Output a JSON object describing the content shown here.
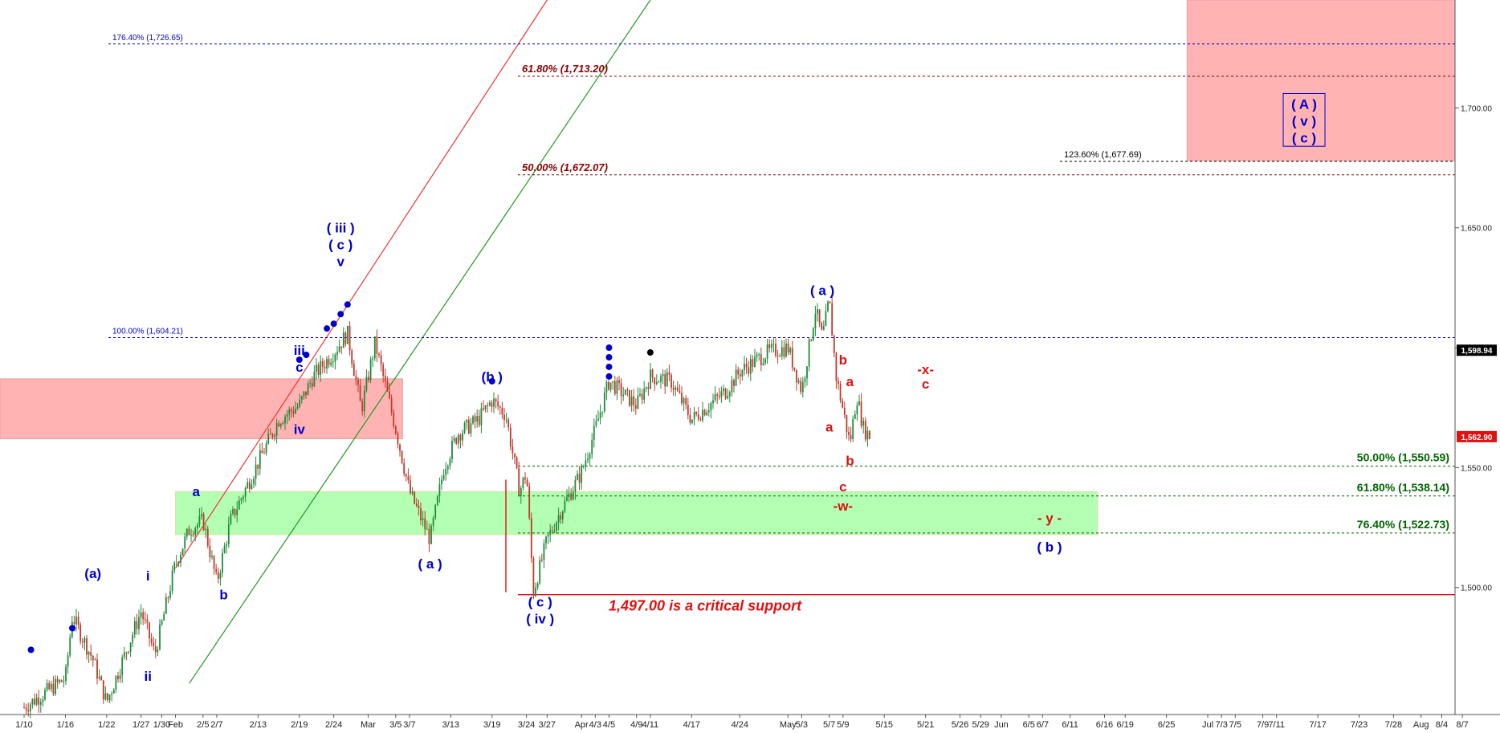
{
  "chart_data": {
    "type": "candlestick",
    "title": "",
    "xlabel": "",
    "ylabel": "",
    "ylim": [
      1447,
      1745
    ],
    "y_ticks": [
      1500,
      1550,
      1600,
      1650,
      1700
    ],
    "y_tick_labels": [
      "1,500.00",
      "1,550.00",
      "1,600.00",
      "1,650.00",
      "1,700.00"
    ],
    "x_tick_labels": [
      "1/10",
      "1/16",
      "1/22",
      "1/27",
      "1/30",
      "Feb",
      "2/5",
      "2/7",
      "2/13",
      "2/19",
      "2/24",
      "Mar",
      "3/5",
      "3/7",
      "3/13",
      "3/19",
      "3/24",
      "3/27",
      "Apr",
      "4/3",
      "4/5",
      "4/9",
      "4/11",
      "4/17",
      "4/24",
      "May",
      "5/3",
      "5/7",
      "5/9",
      "5/15",
      "5/21",
      "5/26",
      "5/29",
      "Jun",
      "6/5",
      "6/7",
      "6/11",
      "6/16",
      "6/19",
      "6/25",
      "Jul",
      "7/3",
      "7/5",
      "7/9",
      "7/11",
      "7/17",
      "7/23",
      "7/28",
      "Aug",
      "8/4",
      "8/7"
    ],
    "grid": false,
    "price_path": [
      [
        "1/10",
        1450
      ],
      [
        "1/16",
        1462
      ],
      [
        "1/17",
        1488
      ],
      [
        "1/20",
        1470
      ],
      [
        "1/22",
        1452
      ],
      [
        "1/27",
        1490
      ],
      [
        "1/29",
        1472
      ],
      [
        "2/1",
        1510
      ],
      [
        "2/3",
        1524
      ],
      [
        "2/5",
        1528
      ],
      [
        "2/7",
        1502
      ],
      [
        "2/9",
        1528
      ],
      [
        "2/13",
        1552
      ],
      [
        "2/16",
        1570
      ],
      [
        "2/19",
        1576
      ],
      [
        "2/21",
        1588
      ],
      [
        "2/24",
        1598
      ],
      [
        "2/26",
        1606
      ],
      [
        "2/28",
        1574
      ],
      [
        "3/2",
        1602
      ],
      [
        "3/5",
        1566
      ],
      [
        "3/7",
        1540
      ],
      [
        "3/10",
        1520
      ],
      [
        "3/12",
        1550
      ],
      [
        "3/14",
        1564
      ],
      [
        "3/17",
        1570
      ],
      [
        "3/19",
        1578
      ],
      [
        "3/21",
        1572
      ],
      [
        "3/23",
        1540
      ],
      [
        "3/24",
        1548
      ],
      [
        "3/25",
        1498
      ],
      [
        "3/27",
        1520
      ],
      [
        "3/29",
        1532
      ],
      [
        "4/1",
        1548
      ],
      [
        "4/3",
        1566
      ],
      [
        "4/5",
        1586
      ],
      [
        "4/9",
        1576
      ],
      [
        "4/11",
        1588
      ],
      [
        "4/14",
        1586
      ],
      [
        "4/17",
        1570
      ],
      [
        "4/22",
        1582
      ],
      [
        "4/24",
        1590
      ],
      [
        "4/28",
        1598
      ],
      [
        "5/1",
        1600
      ],
      [
        "5/3",
        1582
      ],
      [
        "5/5",
        1616
      ],
      [
        "5/6",
        1604
      ],
      [
        "5/7",
        1620
      ],
      [
        "5/8",
        1588
      ],
      [
        "5/9",
        1574
      ],
      [
        "5/10",
        1560
      ],
      [
        "5/11",
        1580
      ],
      [
        "5/12",
        1566
      ],
      [
        "5/13",
        1562.9
      ]
    ],
    "fib_levels": [
      {
        "price": 1726.65,
        "label": "176.40% (1,726.65)",
        "color": "#0000cc"
      },
      {
        "price": 1713.2,
        "label": "61.80% (1,713.20)",
        "color": "#8b0000"
      },
      {
        "price": 1677.69,
        "label": "123.60% (1,677.69)",
        "color": "#000000"
      },
      {
        "price": 1672.07,
        "label": "50.00% (1,672.07)",
        "color": "#8b0000"
      },
      {
        "price": 1604.21,
        "label": "100.00% (1,604.21)",
        "color": "#0000cc"
      },
      {
        "price": 1550.59,
        "label": "50.00% (1,550.59)",
        "color": "#006400"
      },
      {
        "price": 1538.14,
        "label": "61.80% (1,538.14)",
        "color": "#006400"
      },
      {
        "price": 1522.73,
        "label": "76.40% (1,522.73)",
        "color": "#006400"
      }
    ],
    "support_line": {
      "price": 1497.0,
      "label": "1,497.00 is a critical support",
      "color": "#dd1111"
    },
    "price_badges": [
      {
        "price": 1598.94,
        "label": "1,598.94",
        "bg": "#000000"
      },
      {
        "price": 1562.9,
        "label": "1,562.90",
        "bg": "#dd1111"
      }
    ],
    "zones": [
      {
        "name": "resistance-zone-left",
        "x0": "1/5",
        "x1": "3/6",
        "y0": 1562,
        "y1": 1587,
        "color": "#ffb3b3"
      },
      {
        "name": "support-zone-green",
        "x0": "2/1",
        "x1": "6/15",
        "y0": 1522,
        "y1": 1540,
        "color": "#b3ffb3"
      },
      {
        "name": "target-zone-upper",
        "x0": "6/28",
        "x1": "8/9",
        "y0": 1678,
        "y1": 1745,
        "color": "#ffb3b3"
      }
    ],
    "channel_lines": [
      {
        "name": "red-channel-line",
        "x0": "2/1",
        "y0": 1508,
        "x1": "3/27",
        "y1": 1745,
        "color": "#ee3333"
      },
      {
        "name": "green-channel-line",
        "x0": "2/3",
        "y0": 1460,
        "x1": "4/11",
        "y1": 1745,
        "color": "#229922"
      }
    ],
    "wave_labels": [
      {
        "text": "(a)",
        "x": "1/20",
        "y": 1504,
        "color": "#0000cc"
      },
      {
        "text": "i",
        "x": "1/28",
        "y": 1503,
        "color": "#0000cc"
      },
      {
        "text": "ii",
        "x": "1/28",
        "y": 1461,
        "color": "#0000cc"
      },
      {
        "text": "a",
        "x": "2/4",
        "y": 1538,
        "color": "#0000cc"
      },
      {
        "text": "b",
        "x": "2/8",
        "y": 1495,
        "color": "#0000cc"
      },
      {
        "text": "iv",
        "x": "2/19",
        "y": 1564,
        "color": "#0000cc"
      },
      {
        "text": "iii",
        "x": "2/19",
        "y": 1597,
        "color": "#0000cc"
      },
      {
        "text": "c",
        "x": "2/19",
        "y": 1590,
        "color": "#0000cc"
      },
      {
        "text": "( iii )",
        "x": "2/25",
        "y": 1648,
        "color": "#0000cc"
      },
      {
        "text": "( c )",
        "x": "2/25",
        "y": 1641,
        "color": "#0000cc"
      },
      {
        "text": "v",
        "x": "2/25",
        "y": 1634,
        "color": "#0000cc"
      },
      {
        "text": "( a )",
        "x": "3/10",
        "y": 1508,
        "color": "#0000cc"
      },
      {
        "text": "(b )",
        "x": "3/19",
        "y": 1586,
        "color": "#0000cc"
      },
      {
        "text": "( c )",
        "x": "3/26",
        "y": 1492,
        "color": "#0000cc"
      },
      {
        "text": "( iv )",
        "x": "3/26",
        "y": 1485,
        "color": "#0000cc"
      },
      {
        "text": "( a )",
        "x": "5/6",
        "y": 1622,
        "color": "#0000cc"
      },
      {
        "text": "b",
        "x": "5/9",
        "y": 1593,
        "color": "#dd1111"
      },
      {
        "text": "a",
        "x": "5/10",
        "y": 1584,
        "color": "#dd1111"
      },
      {
        "text": "a",
        "x": "5/7",
        "y": 1565,
        "color": "#dd1111"
      },
      {
        "text": "b",
        "x": "5/10",
        "y": 1551,
        "color": "#dd1111"
      },
      {
        "text": "c",
        "x": "5/9",
        "y": 1540,
        "color": "#dd1111"
      },
      {
        "text": "-w-",
        "x": "5/9",
        "y": 1532,
        "color": "#dd1111"
      },
      {
        "text": "-x-",
        "x": "5/21",
        "y": 1589,
        "color": "#dd1111"
      },
      {
        "text": "c",
        "x": "5/21",
        "y": 1583,
        "color": "#dd1111"
      },
      {
        "text": "- y -",
        "x": "6/8",
        "y": 1527,
        "color": "#dd1111"
      },
      {
        "text": "( b )",
        "x": "6/8",
        "y": 1515,
        "color": "#0000cc"
      }
    ],
    "boxed_label": {
      "lines": [
        "( A )",
        "( v )",
        "( c )"
      ],
      "x": "7/15",
      "y_top": 1706,
      "y_bottom": 1684,
      "color": "#0000cc"
    },
    "dots": [
      {
        "x": "1/11",
        "y": 1474,
        "color": "#0000cc"
      },
      {
        "x": "1/17",
        "y": 1483,
        "color": "#0000cc"
      },
      {
        "x": "2/19",
        "y": 1595,
        "color": "#0000cc"
      },
      {
        "x": "2/20",
        "y": 1597,
        "color": "#0000cc"
      },
      {
        "x": "2/23",
        "y": 1608,
        "color": "#0000cc"
      },
      {
        "x": "2/24",
        "y": 1610,
        "color": "#0000cc"
      },
      {
        "x": "2/25",
        "y": 1614,
        "color": "#0000cc"
      },
      {
        "x": "2/26",
        "y": 1618,
        "color": "#0000cc"
      },
      {
        "x": "3/19",
        "y": 1586,
        "color": "#0000cc"
      },
      {
        "x": "4/5",
        "y": 1600,
        "color": "#0000cc"
      },
      {
        "x": "4/5",
        "y": 1596,
        "color": "#0000cc"
      },
      {
        "x": "4/5",
        "y": 1592,
        "color": "#0000cc"
      },
      {
        "x": "4/5",
        "y": 1588,
        "color": "#0000cc"
      },
      {
        "x": "4/11",
        "y": 1598,
        "color": "#000000"
      }
    ]
  }
}
